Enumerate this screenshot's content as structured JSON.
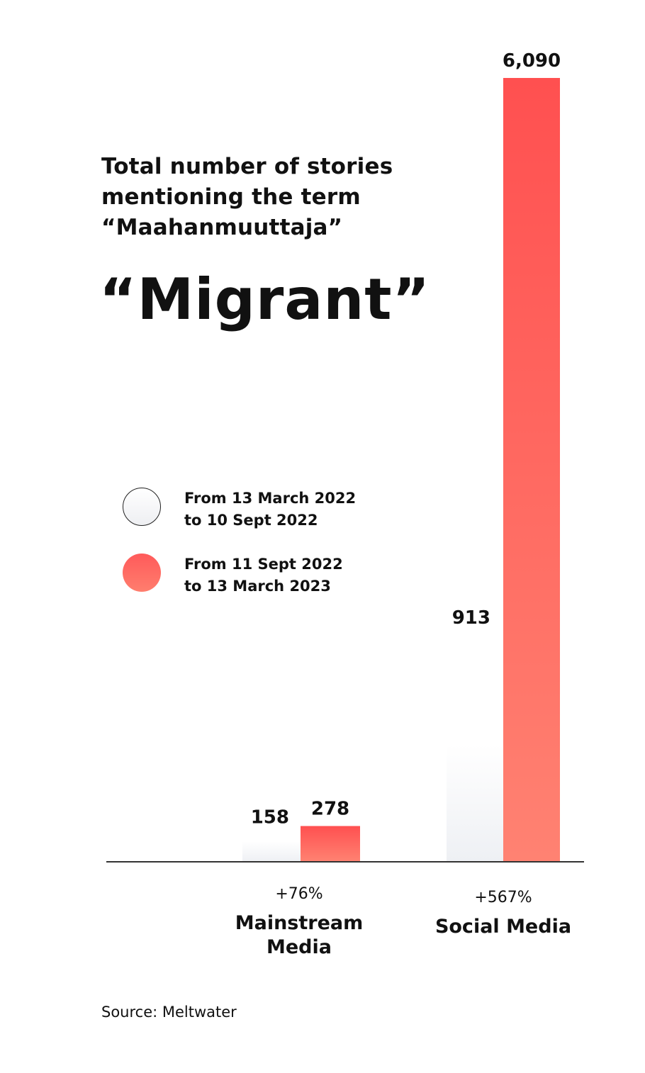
{
  "chart_data": {
    "type": "bar",
    "subtitle_lines": [
      "Total number of stories",
      "mentioning the term",
      "“Maahanmuuttaja”"
    ],
    "title": "“Migrant”",
    "categories": [
      {
        "label_lines": [
          "Mainstream",
          "Media"
        ],
        "change": "+76%"
      },
      {
        "label_lines": [
          "Social Media"
        ],
        "change": "+567%"
      }
    ],
    "series": [
      {
        "name_lines": [
          "From 13 March 2022",
          "to 10 Sept 2022"
        ],
        "values": [
          158,
          913
        ],
        "value_labels": [
          "158",
          "913"
        ]
      },
      {
        "name_lines": [
          "From 11 Sept 2022",
          "to 13 March 2023"
        ],
        "values": [
          278,
          6090
        ],
        "value_labels": [
          "278",
          "6,090"
        ]
      }
    ],
    "ylim": [
      0,
      6090
    ],
    "grid": false,
    "legend_position": "left-middle",
    "colors": {
      "series_before": "#f2f3f6",
      "series_after_top": "#ff5050",
      "series_after_bottom": "#ff8272",
      "axis": "#333333"
    }
  },
  "source": "Source: Meltwater"
}
